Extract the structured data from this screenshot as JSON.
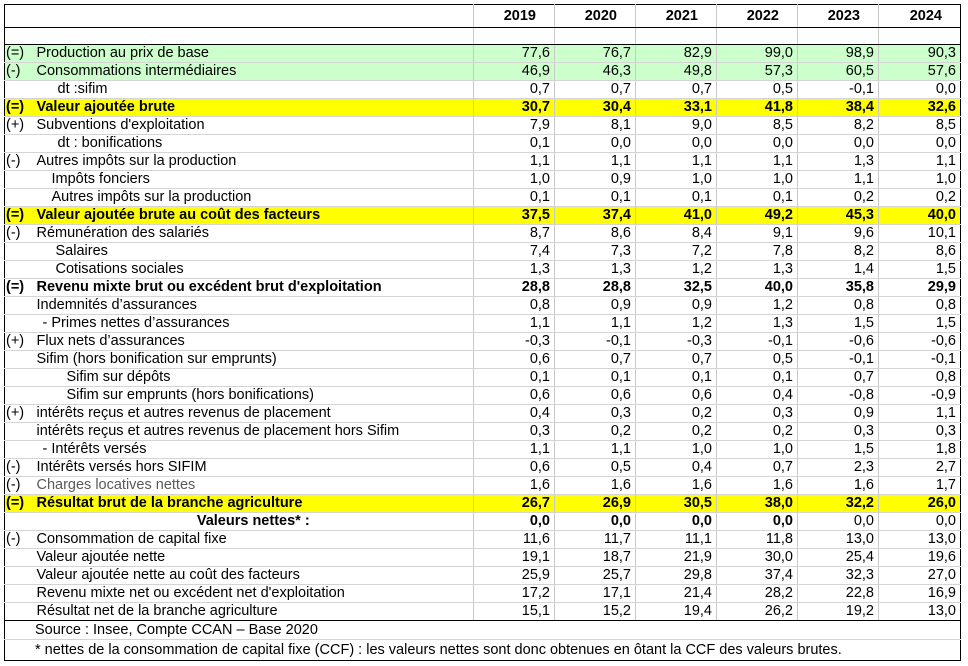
{
  "header": {
    "years": [
      "2019",
      "2020",
      "2021",
      "2022",
      "2023",
      "2024"
    ]
  },
  "rows": [
    {
      "op": "(=)",
      "label": "Production au prix de base",
      "style": "green",
      "values": [
        "77,6",
        "76,7",
        "82,9",
        "99,0",
        "98,9",
        "90,3"
      ]
    },
    {
      "op": "(-)",
      "label": "Consommations intermédiaires",
      "style": "green",
      "values": [
        "46,9",
        "46,3",
        "49,8",
        "57,3",
        "60,5",
        "57,6"
      ]
    },
    {
      "op": "",
      "label": "dt :sifim",
      "style": "ind1",
      "values": [
        "0,7",
        "0,7",
        "0,7",
        "0,5",
        "-0,1",
        "0,0"
      ]
    },
    {
      "op": "(=)",
      "label": "Valeur ajoutée brute",
      "style": "yellow",
      "values": [
        "30,7",
        "30,4",
        "33,1",
        "41,8",
        "38,4",
        "32,6"
      ]
    },
    {
      "op": "(+)",
      "label": "Subventions d'exploitation",
      "style": "",
      "values": [
        "7,9",
        "8,1",
        "9,0",
        "8,5",
        "8,2",
        "8,5"
      ]
    },
    {
      "op": "",
      "label": "dt : bonifications",
      "style": "ind1",
      "values": [
        "0,1",
        "0,0",
        "0,0",
        "0,0",
        "0,0",
        "0,0"
      ]
    },
    {
      "op": "(-)",
      "label": "Autres impôts sur la production",
      "style": "",
      "values": [
        "1,1",
        "1,1",
        "1,1",
        "1,1",
        "1,3",
        "1,1"
      ]
    },
    {
      "op": "",
      "label": "Impôts fonciers",
      "style": "ind2",
      "values": [
        "1,0",
        "0,9",
        "1,0",
        "1,0",
        "1,1",
        "1,0"
      ]
    },
    {
      "op": "",
      "label": "Autres impôts sur la production",
      "style": "ind2",
      "values": [
        "0,1",
        "0,1",
        "0,1",
        "0,1",
        "0,2",
        "0,2"
      ]
    },
    {
      "op": "(=)",
      "label": "Valeur ajoutée brute au coût des facteurs",
      "style": "yellow",
      "values": [
        "37,5",
        "37,4",
        "41,0",
        "49,2",
        "45,3",
        "40,0"
      ]
    },
    {
      "op": "(-)",
      "label": "Rémunération des salariés",
      "style": "",
      "values": [
        "8,7",
        "8,6",
        "8,4",
        "9,1",
        "9,6",
        "10,1"
      ]
    },
    {
      "op": "",
      "label": "Salaires",
      "style": "ind4",
      "values": [
        "7,4",
        "7,3",
        "7,2",
        "7,8",
        "8,2",
        "8,6"
      ]
    },
    {
      "op": "",
      "label": "Cotisations sociales",
      "style": "ind4",
      "values": [
        "1,3",
        "1,3",
        "1,2",
        "1,3",
        "1,4",
        "1,5"
      ]
    },
    {
      "op": "(=)",
      "label": "Revenu mixte brut ou excédent brut d'exploitation",
      "style": "bold",
      "values": [
        "28,8",
        "28,8",
        "32,5",
        "40,0",
        "35,8",
        "29,9"
      ]
    },
    {
      "op": "",
      "label": "Indemnités d’assurances",
      "style": "",
      "values": [
        "0,8",
        "0,9",
        "0,9",
        "1,2",
        "0,8",
        "0,8"
      ]
    },
    {
      "op": "",
      "label": "- Primes nettes d’assurances",
      "style": "ind5",
      "values": [
        "1,1",
        "1,1",
        "1,2",
        "1,3",
        "1,5",
        "1,5"
      ]
    },
    {
      "op": "(+)",
      "label": "Flux nets d’assurances",
      "style": "",
      "values": [
        "-0,3",
        "-0,1",
        "-0,3",
        "-0,1",
        "-0,6",
        "-0,6"
      ]
    },
    {
      "op": "",
      "label": "Sifim (hors bonification sur emprunts)",
      "style": "",
      "values": [
        "0,6",
        "0,7",
        "0,7",
        "0,5",
        "-0,1",
        "-0,1"
      ]
    },
    {
      "op": "",
      "label": "Sifim sur dépôts",
      "style": "ind3",
      "values": [
        "0,1",
        "0,1",
        "0,1",
        "0,1",
        "0,7",
        "0,8"
      ]
    },
    {
      "op": "",
      "label": "Sifim sur emprunts (hors bonifications)",
      "style": "ind3",
      "values": [
        "0,6",
        "0,6",
        "0,6",
        "0,4",
        "-0,8",
        "-0,9"
      ]
    },
    {
      "op": "(+)",
      "label": "intérêts reçus et autres revenus de placement",
      "style": "",
      "values": [
        "0,4",
        "0,3",
        "0,2",
        "0,3",
        "0,9",
        "1,1"
      ]
    },
    {
      "op": "",
      "label": "intérêts reçus et autres revenus de placement hors Sifim",
      "style": "",
      "values": [
        "0,3",
        "0,2",
        "0,2",
        "0,2",
        "0,3",
        "0,3"
      ]
    },
    {
      "op": "",
      "label": "- Intérêts versés",
      "style": "ind5",
      "values": [
        "1,1",
        "1,1",
        "1,0",
        "1,0",
        "1,5",
        "1,8"
      ]
    },
    {
      "op": "(-)",
      "label": "Intérêts versés hors SIFIM",
      "style": "",
      "values": [
        "0,6",
        "0,5",
        "0,4",
        "0,7",
        "2,3",
        "2,7"
      ]
    },
    {
      "op": "(-)",
      "label": "Charges locatives nettes",
      "style": "grey",
      "values": [
        "1,6",
        "1,6",
        "1,6",
        "1,6",
        "1,6",
        "1,7"
      ]
    },
    {
      "op": "(=)",
      "label": "Résultat brut de la branche agriculture",
      "style": "yellow",
      "values": [
        "26,7",
        "26,9",
        "30,5",
        "38,0",
        "32,2",
        "26,0"
      ]
    },
    {
      "op": "",
      "label": "Valeurs nettes* :",
      "style": "center-bold",
      "values": [
        "0,0",
        "0,0",
        "0,0",
        "0,0",
        "0,0",
        "0,0"
      ],
      "bold_values": [
        true,
        true,
        true,
        true,
        false,
        false
      ]
    },
    {
      "op": "(-)",
      "label": "Consommation de capital fixe",
      "style": "",
      "values": [
        "11,6",
        "11,7",
        "11,1",
        "11,8",
        "13,0",
        "13,0"
      ]
    },
    {
      "op": "",
      "label": "Valeur ajoutée nette",
      "style": "",
      "values": [
        "19,1",
        "18,7",
        "21,9",
        "30,0",
        "25,4",
        "19,6"
      ]
    },
    {
      "op": "",
      "label": "Valeur ajoutée nette au coût des facteurs",
      "style": "",
      "values": [
        "25,9",
        "25,7",
        "29,8",
        "37,4",
        "32,3",
        "27,0"
      ]
    },
    {
      "op": "",
      "label": "Revenu mixte net ou excédent net d'exploitation",
      "style": "",
      "values": [
        "17,2",
        "17,1",
        "21,4",
        "28,2",
        "22,8",
        "16,9"
      ]
    },
    {
      "op": "",
      "label": "Résultat net de la branche agriculture",
      "style": "",
      "values": [
        "15,1",
        "15,2",
        "19,4",
        "26,2",
        "19,2",
        "13,0"
      ]
    }
  ],
  "notes": {
    "source": "Source : Insee, Compte CCAN – Base 2020",
    "footnote": "* nettes de la consommation de capital fixe (CCF) : les valeurs nettes sont donc obtenues en ôtant la CCF des valeurs brutes."
  }
}
